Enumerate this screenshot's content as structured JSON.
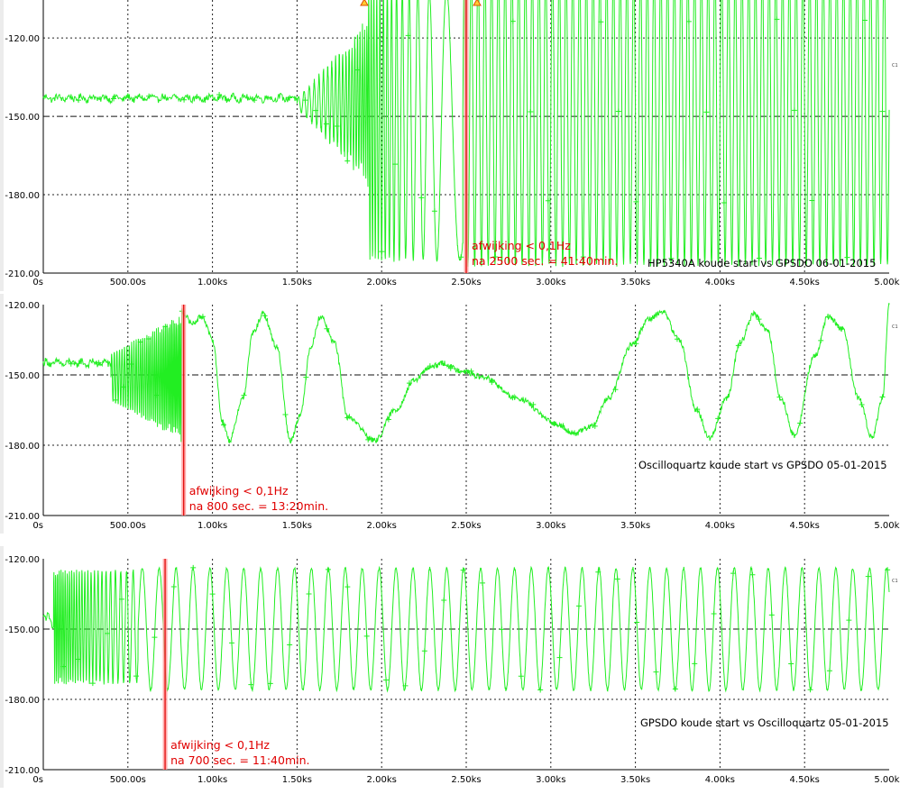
{
  "chart_data": [
    {
      "type": "line",
      "annotation": {
        "marker_x": 2500,
        "line1": "afwijking < 0,1Hz",
        "line2": "na 2500 sec. = 41:40min."
      },
      "caption": "HP5340A koude start vs GPSDO 06-01-2015",
      "side_label": "C1",
      "ylim": [
        -210,
        -102
      ],
      "xlim": [
        0,
        5000
      ],
      "yticks": [
        "-120.00",
        "-150.00",
        "-180.00",
        "-210.00"
      ],
      "ytick_values": [
        -120,
        -150,
        -180,
        -210
      ],
      "xticks": [
        "0s",
        "500.00s",
        "1.00ks",
        "1.50ks",
        "2.00ks",
        "2.50ks",
        "3.00ks",
        "3.50ks",
        "4.00ks",
        "4.50ks",
        "5.00ks"
      ],
      "series": [
        {
          "color": "#22ee22",
          "segments": [
            {
              "t0": 0,
              "t1": 1500,
              "mode": "flat",
              "center": -143,
              "amp": 1.5
            },
            {
              "t0": 1500,
              "t1": 1920,
              "mode": "burst_grow",
              "center": -145,
              "amp_start": 2,
              "amp_end": 33,
              "period_start": 34,
              "period_end": 12
            },
            {
              "t0": 1920,
              "t1": 2480,
              "mode": "chirp",
              "center": -153,
              "amp": 52,
              "period_start": 14,
              "period_end": 210
            },
            {
              "t0": 2480,
              "t1": 5000,
              "mode": "sine",
              "center": -148,
              "amp": 59,
              "period": 40
            }
          ]
        }
      ]
    },
    {
      "type": "line",
      "annotation": {
        "marker_x": 830,
        "line1": "afwijking < 0,1Hz",
        "line2": "na 800 sec. = 13:20min."
      },
      "caption": "Oscilloquartz koude start vs GPSDO 05-01-2015",
      "side_label": "C1",
      "ylim": [
        -210,
        -120
      ],
      "xlim": [
        0,
        5000
      ],
      "yticks": [
        "-120.00",
        "-150.00",
        "-180.00",
        "-210.00"
      ],
      "ytick_values": [
        -120,
        -150,
        -180,
        -210
      ],
      "xticks": [
        "0s",
        "500.00s",
        "1.00ks",
        "1.50ks",
        "2.00ks",
        "2.50ks",
        "3.00ks",
        "3.50ks",
        "4.00ks",
        "4.50ks",
        "5.00ks"
      ],
      "series": [
        {
          "color": "#22ee22",
          "segments": [
            {
              "t0": 0,
              "t1": 400,
              "mode": "flat",
              "center": -145,
              "amp": 2
            },
            {
              "t0": 400,
              "t1": 820,
              "mode": "burst_grow",
              "center": -151,
              "amp_start": 10,
              "amp_end": 28,
              "period_start": 16,
              "period_end": 8
            },
            {
              "t0": 820,
              "t1": 5000,
              "mode": "wave_points"
            }
          ],
          "points": [
            [
              820,
              -123
            ],
            [
              880,
              -128
            ],
            [
              940,
              -125
            ],
            [
              1000,
              -135
            ],
            [
              1060,
              -170
            ],
            [
              1100,
              -178
            ],
            [
              1180,
              -160
            ],
            [
              1240,
              -132
            ],
            [
              1300,
              -124
            ],
            [
              1380,
              -138
            ],
            [
              1460,
              -178
            ],
            [
              1520,
              -167
            ],
            [
              1580,
              -138
            ],
            [
              1640,
              -125
            ],
            [
              1720,
              -136
            ],
            [
              1800,
              -168
            ],
            [
              1960,
              -178
            ],
            [
              2080,
              -165
            ],
            [
              2200,
              -152
            ],
            [
              2280,
              -147
            ],
            [
              2360,
              -145
            ],
            [
              2460,
              -148
            ],
            [
              2600,
              -151
            ],
            [
              2800,
              -160
            ],
            [
              3040,
              -171
            ],
            [
              3140,
              -175
            ],
            [
              3240,
              -172
            ],
            [
              3340,
              -160
            ],
            [
              3480,
              -137
            ],
            [
              3580,
              -126
            ],
            [
              3660,
              -123
            ],
            [
              3760,
              -135
            ],
            [
              3860,
              -165
            ],
            [
              3940,
              -177
            ],
            [
              4040,
              -160
            ],
            [
              4120,
              -136
            ],
            [
              4200,
              -124
            ],
            [
              4280,
              -131
            ],
            [
              4360,
              -160
            ],
            [
              4440,
              -176
            ],
            [
              4560,
              -142
            ],
            [
              4640,
              -125
            ],
            [
              4720,
              -130
            ],
            [
              4820,
              -160
            ],
            [
              4900,
              -177
            ],
            [
              4960,
              -160
            ],
            [
              5000,
              -120
            ]
          ]
        }
      ]
    },
    {
      "type": "line",
      "annotation": {
        "marker_x": 720,
        "line1": "afwijking < 0,1Hz",
        "line2": "na 700 sec. = 11:40min."
      },
      "caption": "GPSDO koude start vs Oscilloquartz 05-01-2015",
      "side_label": "C1",
      "ylim": [
        -210,
        -120
      ],
      "xlim": [
        0,
        5000
      ],
      "yticks": [
        "-120.00",
        "-150.00",
        "-180.00",
        "-210.00"
      ],
      "ytick_values": [
        -120,
        -150,
        -180,
        -210
      ],
      "xticks": [
        "0s",
        "500.00s",
        "1.00ks",
        "1.50ks",
        "2.00ks",
        "2.50ks",
        "3.00ks",
        "3.50ks",
        "4.00ks",
        "4.50ks",
        "5.00ks"
      ],
      "series": [
        {
          "color": "#22ee22",
          "segments": [
            {
              "t0": 0,
              "t1": 60,
              "mode": "flat",
              "center": -146,
              "amp": 3
            },
            {
              "t0": 60,
              "t1": 560,
              "mode": "chirp",
              "center": -149,
              "amp": 24,
              "period_start": 10,
              "period_end": 45
            },
            {
              "t0": 560,
              "t1": 5000,
              "mode": "sine",
              "center": -150,
              "amp": 26,
              "period": 100
            }
          ]
        }
      ]
    }
  ]
}
